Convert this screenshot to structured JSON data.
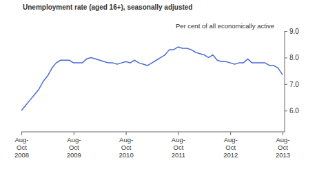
{
  "chart_data": {
    "type": "line",
    "title": "Unemployment rate (aged 16+), seasonally adjusted",
    "y_label": "Per cent of all economically active",
    "categories": [
      "Aug-Oct 2008",
      null,
      null,
      null,
      null,
      null,
      null,
      null,
      null,
      null,
      null,
      null,
      "Aug-Oct 2009",
      null,
      null,
      null,
      null,
      null,
      null,
      null,
      null,
      null,
      null,
      null,
      "Aug-Oct 2010",
      null,
      null,
      null,
      null,
      null,
      null,
      null,
      null,
      null,
      null,
      null,
      "Aug-Oct 2011",
      null,
      null,
      null,
      null,
      null,
      null,
      null,
      null,
      null,
      null,
      null,
      "Aug-Oct 2012",
      null,
      null,
      null,
      null,
      null,
      null,
      null,
      null,
      null,
      null,
      null,
      "Aug-Oct 2013"
    ],
    "values": [
      6.0,
      6.2,
      6.4,
      6.6,
      6.8,
      7.1,
      7.3,
      7.6,
      7.8,
      7.9,
      7.9,
      7.9,
      7.8,
      7.8,
      7.8,
      7.95,
      8.0,
      7.95,
      7.9,
      7.85,
      7.8,
      7.8,
      7.75,
      7.8,
      7.85,
      7.8,
      7.9,
      7.8,
      7.75,
      7.7,
      7.8,
      7.9,
      8.0,
      8.1,
      8.3,
      8.3,
      8.4,
      8.35,
      8.35,
      8.3,
      8.2,
      8.15,
      8.1,
      8.0,
      8.1,
      7.9,
      7.85,
      7.85,
      7.8,
      7.75,
      7.8,
      7.8,
      7.95,
      7.8,
      7.8,
      7.8,
      7.8,
      7.7,
      7.7,
      7.6,
      7.35
    ],
    "color": "#4a6cd4",
    "ylim": [
      5.2,
      9.0
    ],
    "yticks": [
      {
        "value": 6,
        "label": "6.0"
      },
      {
        "value": 7,
        "label": "7.0"
      },
      {
        "value": 8,
        "label": "8.0"
      },
      {
        "value": 9,
        "label": "9.0"
      }
    ],
    "grid": false
  }
}
